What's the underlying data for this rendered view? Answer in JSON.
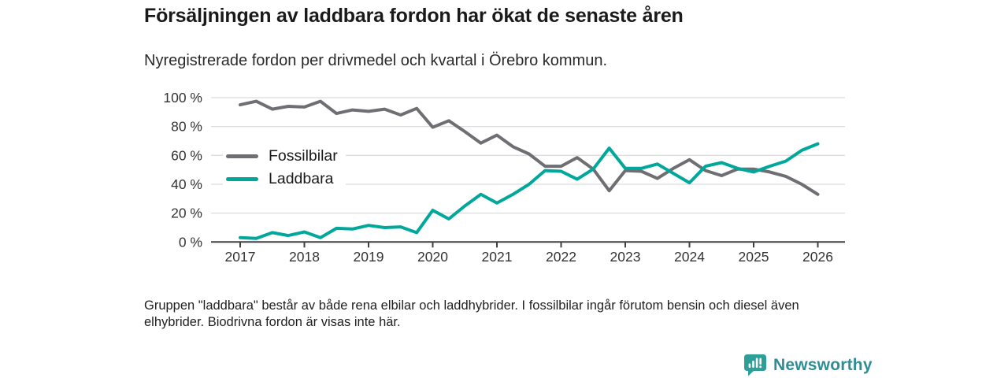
{
  "header": {
    "title": "Försäljningen av laddbara fordon har ökat de senaste åren",
    "subtitle": "Nyregistrerade fordon per drivmedel och kvartal i Örebro kommun."
  },
  "legend": {
    "items": [
      {
        "label": "Fossilbilar",
        "color": "#6e6e73"
      },
      {
        "label": "Laddbara",
        "color": "#00a79b"
      }
    ]
  },
  "footnote": "Gruppen \"laddbara\" består av både rena elbilar och laddhybrider. I fossilbilar ingår förutom bensin och diesel även elhybrider. Biodrivna fordon är visas inte här.",
  "logo": {
    "text": "Newsworthy",
    "text_color": "#2e8d96",
    "icon": "newsworthy-bar-chart-bubble-icon",
    "icon_color": "#2e9e98"
  },
  "colors": {
    "fossil_line": "#6e6e73",
    "laddbara_line": "#00a79b",
    "grid": "#dcdcdc",
    "axis": "#414141",
    "tick_text": "#333333"
  },
  "chart_data": {
    "type": "line",
    "title": "Försäljningen av laddbara fordon har ökat de senaste åren",
    "subtitle": "Nyregistrerade fordon per drivmedel och kvartal i Örebro kommun.",
    "xlabel": "",
    "ylabel": "",
    "grid": true,
    "legend_position": "inside-left",
    "ylim": [
      0,
      100
    ],
    "ytick_values": [
      0,
      20,
      40,
      60,
      80,
      100
    ],
    "ytick_labels": [
      "0 %",
      "20 %",
      "40 %",
      "60 %",
      "80 %",
      "100 %"
    ],
    "xtick_labels": [
      "2017",
      "2018",
      "2019",
      "2020",
      "2021",
      "2022",
      "2023",
      "2024",
      "2025",
      "2026"
    ],
    "categories": [
      "2017Q1",
      "2017Q2",
      "2017Q3",
      "2017Q4",
      "2018Q1",
      "2018Q2",
      "2018Q3",
      "2018Q4",
      "2019Q1",
      "2019Q2",
      "2019Q3",
      "2019Q4",
      "2020Q1",
      "2020Q2",
      "2020Q3",
      "2020Q4",
      "2021Q1",
      "2021Q2",
      "2021Q3",
      "2021Q4",
      "2022Q1",
      "2022Q2",
      "2022Q3",
      "2022Q4",
      "2023Q1",
      "2023Q2",
      "2023Q3",
      "2023Q4",
      "2024Q1",
      "2024Q2",
      "2024Q3",
      "2024Q4",
      "2025Q1",
      "2025Q2",
      "2025Q3",
      "2025Q4",
      "2026Q1"
    ],
    "series": [
      {
        "name": "Fossilbilar",
        "color": "#6e6e73",
        "values": [
          95,
          97.5,
          92,
          94,
          93.5,
          97.5,
          89,
          91.5,
          90.5,
          92,
          88,
          92.5,
          79.5,
          84,
          76.5,
          68.5,
          74,
          66,
          61,
          52.5,
          52.5,
          58.5,
          50.5,
          35.5,
          49.5,
          49,
          44,
          51,
          57,
          49.5,
          46,
          50.5,
          50.5,
          48.5,
          45.5,
          40,
          33
        ]
      },
      {
        "name": "Laddbara",
        "color": "#00a79b",
        "values": [
          3,
          2.5,
          6.5,
          4.5,
          7,
          3,
          9.5,
          9,
          11.5,
          10,
          10.5,
          6.5,
          22,
          16,
          25,
          33,
          27,
          33,
          40,
          49.5,
          49,
          43.5,
          50.5,
          65,
          51,
          51,
          54,
          47.5,
          41,
          52.5,
          55,
          51,
          48.5,
          52.5,
          56,
          63.5,
          68
        ]
      }
    ]
  }
}
